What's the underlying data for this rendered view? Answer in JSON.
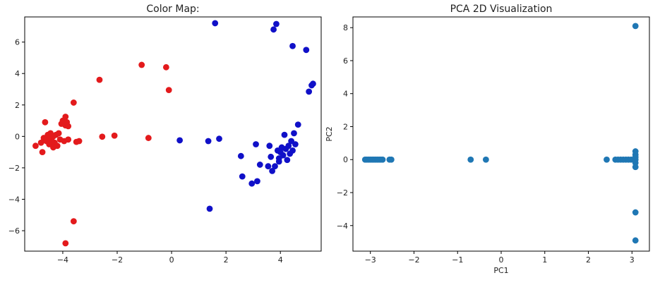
{
  "chart_data": [
    {
      "type": "scatter",
      "title": "Color Map:",
      "xlabel": "",
      "ylabel": "",
      "xlim": [
        -5.4,
        5.5
      ],
      "ylim": [
        -7.3,
        7.6
      ],
      "xticks": [
        -4,
        -2,
        0,
        2,
        4
      ],
      "yticks": [
        -6,
        -4,
        -2,
        0,
        2,
        4,
        6
      ],
      "xtick_labels": [
        "−4",
        "−2",
        "0",
        "2",
        "4"
      ],
      "ytick_labels": [
        "−6",
        "−4",
        "−2",
        "0",
        "2",
        "4",
        "6"
      ],
      "grid": false,
      "series": [
        {
          "color": "#e31a1c",
          "points": [
            [
              -5.0,
              -0.6
            ],
            [
              -4.8,
              -0.4
            ],
            [
              -4.75,
              -1.0
            ],
            [
              -4.7,
              -0.1
            ],
            [
              -4.65,
              0.9
            ],
            [
              -4.6,
              -0.2
            ],
            [
              -4.55,
              0.1
            ],
            [
              -4.5,
              -0.5
            ],
            [
              -4.45,
              0.2
            ],
            [
              -4.4,
              -0.3
            ],
            [
              -4.35,
              0.0
            ],
            [
              -4.3,
              -0.4
            ],
            [
              -4.25,
              0.1
            ],
            [
              -4.2,
              -0.6
            ],
            [
              -4.15,
              0.2
            ],
            [
              -4.1,
              -0.2
            ],
            [
              -4.05,
              0.8
            ],
            [
              -4.0,
              1.0
            ],
            [
              -3.95,
              -0.3
            ],
            [
              -3.9,
              0.7
            ],
            [
              -3.85,
              0.9
            ],
            [
              -3.8,
              -0.2
            ],
            [
              -3.9,
              1.25
            ],
            [
              -3.8,
              0.65
            ],
            [
              -4.35,
              -0.7
            ],
            [
              -3.6,
              2.15
            ],
            [
              -3.5,
              -0.35
            ],
            [
              -3.4,
              -0.3
            ],
            [
              -3.6,
              -5.4
            ],
            [
              -3.9,
              -6.8
            ],
            [
              -2.65,
              3.6
            ],
            [
              -2.55,
              -0.02
            ],
            [
              -2.1,
              0.05
            ],
            [
              -1.1,
              4.55
            ],
            [
              -0.85,
              -0.1
            ],
            [
              -0.2,
              4.4
            ],
            [
              -0.1,
              2.95
            ],
            [
              -4.5,
              0.0
            ],
            [
              -4.6,
              -0.3
            ]
          ]
        },
        {
          "color": "#1010c8",
          "points": [
            [
              0.3,
              -0.25
            ],
            [
              1.35,
              -0.3
            ],
            [
              1.4,
              -4.6
            ],
            [
              1.6,
              7.2
            ],
            [
              1.75,
              -0.15
            ],
            [
              2.55,
              -1.25
            ],
            [
              2.6,
              -2.55
            ],
            [
              2.95,
              -3.0
            ],
            [
              3.1,
              -0.5
            ],
            [
              3.15,
              -2.85
            ],
            [
              3.25,
              -1.8
            ],
            [
              3.55,
              -1.9
            ],
            [
              3.6,
              -0.6
            ],
            [
              3.65,
              -1.3
            ],
            [
              3.7,
              -2.2
            ],
            [
              3.75,
              6.8
            ],
            [
              3.8,
              -1.9
            ],
            [
              3.85,
              7.15
            ],
            [
              3.9,
              -0.9
            ],
            [
              3.95,
              -1.4
            ],
            [
              4.0,
              -1.0
            ],
            [
              4.05,
              -0.7
            ],
            [
              4.1,
              -1.2
            ],
            [
              4.15,
              0.1
            ],
            [
              4.2,
              -0.8
            ],
            [
              4.25,
              -1.5
            ],
            [
              4.3,
              -0.6
            ],
            [
              4.35,
              -1.1
            ],
            [
              4.4,
              -0.3
            ],
            [
              4.45,
              5.75
            ],
            [
              4.5,
              0.2
            ],
            [
              4.55,
              -0.5
            ],
            [
              4.65,
              0.75
            ],
            [
              4.95,
              5.5
            ],
            [
              5.05,
              2.85
            ],
            [
              5.15,
              3.25
            ],
            [
              5.2,
              3.35
            ],
            [
              4.45,
              -0.9
            ],
            [
              3.95,
              -1.6
            ]
          ]
        }
      ]
    },
    {
      "type": "scatter",
      "title": "PCA 2D Visualization",
      "xlabel": "PC1",
      "ylabel": "PC2",
      "xlim": [
        -3.4,
        3.4
      ],
      "ylim": [
        -5.55,
        8.65
      ],
      "xticks": [
        -3,
        -2,
        -1,
        0,
        1,
        2,
        3
      ],
      "yticks": [
        -4,
        -2,
        0,
        2,
        4,
        6,
        8
      ],
      "xtick_labels": [
        "−3",
        "−2",
        "−1",
        "0",
        "1",
        "2",
        "3"
      ],
      "ytick_labels": [
        "−4",
        "−2",
        "0",
        "2",
        "4",
        "6",
        "8"
      ],
      "grid": false,
      "series": [
        {
          "color": "#1f77b4",
          "points": [
            [
              -3.12,
              0.0
            ],
            [
              -3.08,
              0.0
            ],
            [
              -3.04,
              0.0
            ],
            [
              -3.0,
              0.0
            ],
            [
              -2.96,
              0.0
            ],
            [
              -2.92,
              0.0
            ],
            [
              -2.88,
              0.0
            ],
            [
              -2.84,
              0.0
            ],
            [
              -2.8,
              0.0
            ],
            [
              -2.76,
              0.0
            ],
            [
              -2.72,
              0.0
            ],
            [
              -2.56,
              0.0
            ],
            [
              -2.52,
              0.0
            ],
            [
              -0.7,
              0.0
            ],
            [
              -0.35,
              0.0
            ],
            [
              2.42,
              0.0
            ],
            [
              2.62,
              0.0
            ],
            [
              2.68,
              0.0
            ],
            [
              2.74,
              0.0
            ],
            [
              2.8,
              0.0
            ],
            [
              2.86,
              0.0
            ],
            [
              2.92,
              0.0
            ],
            [
              2.98,
              0.0
            ],
            [
              3.04,
              0.0
            ],
            [
              3.08,
              0.0
            ],
            [
              3.08,
              0.5
            ],
            [
              3.08,
              0.3
            ],
            [
              3.08,
              0.15
            ],
            [
              3.08,
              -0.2
            ],
            [
              3.08,
              -0.45
            ],
            [
              3.08,
              -3.2
            ],
            [
              3.08,
              -4.9
            ],
            [
              3.08,
              8.1
            ]
          ]
        }
      ]
    }
  ]
}
